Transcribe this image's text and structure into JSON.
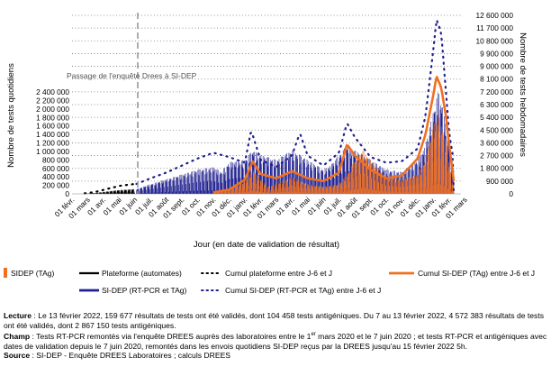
{
  "chart_data": {
    "type": "line",
    "xlabel": "Jour (en date de validation de résultat)",
    "ylabel_left": "Nombre de tests quotidiens",
    "ylabel_right": "Nombre de tests hebdomadaires",
    "y_left_ticks": [
      "0",
      "200 000",
      "400 000",
      "600 000",
      "800 000",
      "1 000 000",
      "1 200 000",
      "1 400 000",
      "1 600 000",
      "1 800 000",
      "2 000 000",
      "2 200 000",
      "2 400 000"
    ],
    "y_left_range": [
      0,
      2400000
    ],
    "y_right_ticks": [
      "0",
      "900 000",
      "1 800 000",
      "2 700 000",
      "3 600 000",
      "4 500 000",
      "5 400 000",
      "6 300 000",
      "7 200 000",
      "8 100 000",
      "9 000 000",
      "9 900 000",
      "10 800 000",
      "11 700 000",
      "12 600 000"
    ],
    "y_right_range": [
      0,
      12600000
    ],
    "x_ticks": [
      "01 févr.",
      "01 mars",
      "01 avr.",
      "01 mai",
      "01 juin",
      "01 juil.",
      "01 août",
      "01 sept.",
      "01 oct.",
      "01 nov.",
      "01 déc.",
      "01 janv.",
      "01 févr.",
      "01 mars",
      "01 avr.",
      "01 mai",
      "01 juin",
      "01 juil.",
      "01 août",
      "01 sept.",
      "01 oct.",
      "01 nov.",
      "01 déc.",
      "01 janv.",
      "01 févr.",
      "01 mars"
    ],
    "annotation": "Passage de l'enquête Drees à SI-DEP",
    "grid": "horizontal dotted",
    "legend_placement": "bottom",
    "series": [
      {
        "name": "SIDEP (TAg)",
        "axis": "left",
        "color": "#f07020",
        "x_month_index": [
          9,
          10,
          11,
          11.5,
          12,
          12.5,
          13,
          14,
          15,
          16,
          17,
          17.5,
          18,
          18.5,
          19,
          19.5,
          20,
          21,
          22,
          22.5,
          23,
          23.3,
          23.6,
          23.9,
          24,
          24.3
        ],
        "values": [
          30000,
          100000,
          250000,
          500000,
          300000,
          150000,
          200000,
          350000,
          200000,
          150000,
          200000,
          400000,
          700000,
          900000,
          700000,
          500000,
          350000,
          300000,
          400000,
          700000,
          1400000,
          1650000,
          1300000,
          950000,
          600000,
          150000
        ]
      },
      {
        "name": "Plateforme (automates)",
        "axis": "left",
        "color": "#000000",
        "x_month_index": [
          0.8,
          1.5,
          2,
          2.5,
          3,
          3.5,
          4
        ],
        "values": [
          5000,
          20000,
          40000,
          60000,
          80000,
          90000,
          100000
        ]
      },
      {
        "name": "SI-DEP (RT-PCR et TAg)",
        "axis": "left",
        "color": "#1f1f8f",
        "x_month_index": [
          4.1,
          5,
          6,
          7,
          8,
          9,
          9.5,
          10,
          11,
          11.5,
          12,
          13,
          14,
          15,
          16,
          16.5,
          17,
          17.5,
          18,
          19,
          20,
          21,
          22,
          22.5,
          23,
          23.3,
          23.6,
          23.9,
          24.3
        ],
        "values": [
          100000,
          200000,
          300000,
          400000,
          500000,
          550000,
          450000,
          650000,
          700000,
          900000,
          800000,
          700000,
          900000,
          700000,
          500000,
          600000,
          800000,
          1000000,
          900000,
          700000,
          500000,
          450000,
          700000,
          1000000,
          1700000,
          2100000,
          1800000,
          1200000,
          500000
        ]
      },
      {
        "name": "Cumul plateforme entre J-6 et J",
        "axis": "right",
        "color": "#000000",
        "style": "dotted",
        "x_month_index": [
          0.8,
          1.5,
          2,
          2.5,
          3,
          3.5,
          4
        ],
        "values": [
          35000,
          140000,
          280000,
          420000,
          560000,
          630000,
          700000
        ]
      },
      {
        "name": "Cumul SI-DEP (RT-PCR et TAg) entre J-6 et J",
        "axis": "right",
        "color": "#1f1f8f",
        "style": "dotted",
        "x_month_index": [
          4.1,
          5,
          6,
          7,
          8,
          9,
          10,
          11,
          11.4,
          12,
          13,
          14,
          14.5,
          15,
          16,
          17,
          17.5,
          18,
          19,
          20,
          21,
          22,
          22.5,
          23,
          23.2,
          23.5,
          23.8,
          24,
          24.3
        ],
        "values": [
          700000,
          1100000,
          1500000,
          2000000,
          2500000,
          2900000,
          2600000,
          2200000,
          4500000,
          2400000,
          1900000,
          2700000,
          4300000,
          2700000,
          2000000,
          2900000,
          5000000,
          4000000,
          2600000,
          2200000,
          2300000,
          3200000,
          5500000,
          10200000,
          12300000,
          11400000,
          7200000,
          4300000,
          2300000
        ]
      },
      {
        "name": "Cumul SI-DEP (TAg) entre J-6 et J",
        "axis": "right",
        "color": "#f07020",
        "style": "solid",
        "x_month_index": [
          9,
          10,
          11,
          11.5,
          12,
          13,
          14,
          15,
          16,
          17,
          17.5,
          18,
          19,
          20,
          21,
          22,
          22.5,
          23,
          23.2,
          23.5,
          23.8,
          24,
          24.3
        ],
        "values": [
          100000,
          300000,
          1000000,
          2300000,
          1400000,
          1100000,
          1600000,
          1100000,
          900000,
          1500000,
          3500000,
          2700000,
          1700000,
          1100000,
          1300000,
          2500000,
          4200000,
          7000000,
          8300000,
          7500000,
          5500000,
          3500000,
          900000
        ]
      }
    ]
  },
  "legend": {
    "tag": "SIDEP (TAg)",
    "plateforme": "Plateforme (automates)",
    "cumul_plateforme": "Cumul plateforme entre J-6 et J",
    "cumul_tag": "Cumul SI-DEP (TAg) entre J-6 et J",
    "sidep": "SI-DEP (RT-PCR et TAg)",
    "cumul_sidep": "Cumul SI-DEP (RT-PCR et TAg) entre J-6 et J"
  },
  "notes": {
    "lecture_label": "Lecture",
    "lecture_text": " : Le 13 février 2022, 159 677 résultats de tests ont été validés, dont 104 458 tests antigéniques. Du 7 au 13 février 2022, 4 572 383 résultats de tests ont été validés, dont 2 867 150 tests antigéniques.",
    "champ_label": "Champ",
    "champ_text_a": " : Tests RT-PCR remontés via l'enquête DREES auprès des laboratoires entre le 1",
    "champ_sup": "er",
    "champ_text_b": " mars 2020 et le 7 juin 2020 ; et tests RT-PCR et antigéniques avec dates de validation depuis le 7 juin 2020, remontés dans les envois quotidiens SI-DEP reçus par la DREES jusqu'au 15 février 2022 5h.",
    "source_label": "Source",
    "source_text": " : SI-DEP - Enquête DREES Laboratoires ; calculs DREES"
  }
}
